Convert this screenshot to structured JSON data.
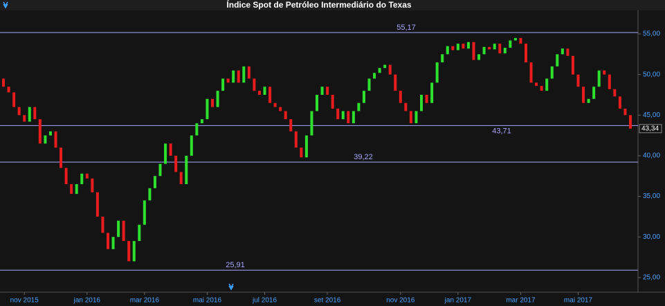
{
  "chart_data": {
    "type": "ohlc",
    "title": "Índice Spot de Petróleo Intermediário do Texas",
    "categories": [
      null,
      null,
      null,
      null,
      "nov 2015",
      null,
      null,
      null,
      null,
      null,
      null,
      null,
      null,
      null,
      null,
      null,
      "jan 2016",
      null,
      null,
      null,
      null,
      null,
      null,
      null,
      null,
      null,
      null,
      "mar 2016",
      null,
      null,
      null,
      null,
      null,
      null,
      null,
      null,
      null,
      null,
      null,
      "mai 2016",
      null,
      null,
      null,
      null,
      null,
      null,
      null,
      null,
      null,
      null,
      "jul 2016",
      null,
      null,
      null,
      null,
      null,
      null,
      null,
      null,
      null,
      null,
      null,
      "set 2016",
      null,
      null,
      null,
      null,
      null,
      null,
      null,
      null,
      null,
      null,
      null,
      null,
      null,
      "nov 2016",
      null,
      null,
      null,
      null,
      null,
      null,
      null,
      null,
      null,
      null,
      "jan 2017",
      null,
      null,
      null,
      null,
      null,
      null,
      null,
      null,
      null,
      null,
      null,
      "mar 2017",
      null,
      null,
      null,
      null,
      null,
      null,
      null,
      null,
      null,
      null,
      "mai 2017",
      null,
      null,
      null,
      null,
      null,
      null,
      null,
      null,
      null,
      null
    ],
    "series": [
      {
        "up_color": "#2ee02e",
        "down_color": "#e81c1c",
        "open": [
          49.5,
          48.5,
          47.8,
          46,
          45,
          44.2,
          46,
          44.5,
          41.5,
          42.5,
          43,
          41,
          38.5,
          36.5,
          35.3,
          36.5,
          37.8,
          37.2,
          35.5,
          32.5,
          30.5,
          28.5,
          30,
          32,
          29.5,
          27,
          29.5,
          31.5,
          34.5,
          36,
          37.5,
          39,
          41.5,
          40,
          38,
          36.5,
          40,
          42.5,
          44,
          44.5,
          47,
          46,
          48,
          49.5,
          49,
          50.5,
          49,
          51,
          49.5,
          48,
          47.5,
          48.5,
          46.5,
          46,
          45.5,
          44.5,
          43,
          41,
          39.8,
          42.5,
          45.5,
          47.5,
          48.5,
          47.5,
          45.8,
          44.5,
          45.5,
          44,
          45.5,
          46.5,
          48,
          49.5,
          50.2,
          50.8,
          51.2,
          50,
          48,
          46.5,
          45.5,
          44,
          45.5,
          47.5,
          46.5,
          49,
          51.5,
          52.5,
          53.5,
          53,
          53.8,
          53.2,
          54,
          51.8,
          52.5,
          53.4,
          53.1,
          53.8,
          52.6,
          53.3,
          54.2,
          54.5,
          53.8,
          51.5,
          49,
          48.6,
          48,
          49.5,
          51,
          52.5,
          53.2,
          52.3,
          50,
          48.5,
          46.5,
          47,
          48.5,
          50.5,
          50,
          48.2,
          47.3,
          45.8,
          45
        ],
        "close": [
          48.5,
          47.8,
          46,
          45,
          44.2,
          46,
          44.5,
          41.5,
          42.5,
          43,
          41,
          38.5,
          36.5,
          35.3,
          36.5,
          37.8,
          37.2,
          35.5,
          32.5,
          30.5,
          28.5,
          30,
          32,
          29.5,
          27,
          29.5,
          31.5,
          34.5,
          36,
          37.5,
          39,
          41.5,
          40,
          38,
          36.5,
          40,
          42.5,
          44,
          44.5,
          47,
          46,
          48,
          49.5,
          49,
          50.5,
          49,
          51,
          49.5,
          48,
          47.5,
          48.5,
          46.5,
          46,
          45.5,
          44.5,
          43,
          41,
          39.8,
          42.5,
          45.5,
          47.5,
          48.5,
          47.5,
          45.8,
          44.5,
          45.5,
          44,
          45.5,
          46.5,
          48,
          49.5,
          50.2,
          50.8,
          51.2,
          50,
          48,
          46.5,
          45.5,
          44,
          45.5,
          47.5,
          46.5,
          49,
          51.5,
          52.5,
          53.5,
          53,
          53.8,
          53.2,
          54,
          51.8,
          52.5,
          53.4,
          53.1,
          53.8,
          52.6,
          53.3,
          54.2,
          54.5,
          53.8,
          51.5,
          49,
          48.6,
          48,
          49.5,
          51,
          52.5,
          53.2,
          52.3,
          50,
          48.5,
          46.5,
          47,
          48.5,
          50.5,
          50,
          48.2,
          47.3,
          45.8,
          45,
          43.34
        ]
      }
    ],
    "ylim": [
      23.2,
      57.9
    ],
    "yticks": [
      {
        "value": 25,
        "label": "25,00"
      },
      {
        "value": 30,
        "label": "30,00"
      },
      {
        "value": 35,
        "label": "35,00"
      },
      {
        "value": 40,
        "label": "40,00"
      },
      {
        "value": 45,
        "label": "45,00"
      },
      {
        "value": 50,
        "label": "50,00"
      },
      {
        "value": 55,
        "label": "55,00"
      }
    ],
    "levels": [
      {
        "value": 55.17,
        "label": "55,17"
      },
      {
        "value": 43.71,
        "label": "43,71"
      },
      {
        "value": 39.22,
        "label": "39,22"
      },
      {
        "value": 25.91,
        "label": "25,91"
      }
    ],
    "level_color": "#a9a9ff",
    "last_value": {
      "value": 43.34,
      "label": "43,34"
    }
  }
}
